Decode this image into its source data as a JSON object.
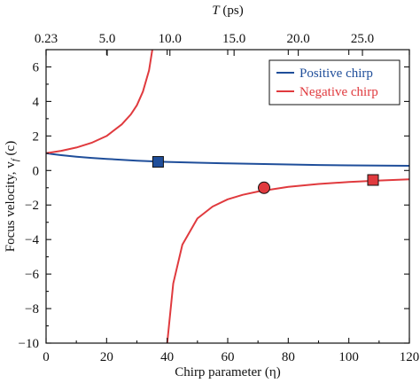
{
  "chart_data": {
    "type": "line",
    "xlabel": "Chirp parameter (η)",
    "ylabel": "Focus velocity, v_f (c)",
    "xlim": [
      0,
      120
    ],
    "ylim": [
      -10,
      7
    ],
    "x_ticks": [
      "0",
      "20",
      "40",
      "60",
      "80",
      "100",
      "120"
    ],
    "y_ticks": [
      "−10",
      "−8",
      "−6",
      "−4",
      "−2",
      "0",
      "2",
      "4",
      "6"
    ],
    "top_axis": {
      "label": "T (ps)",
      "ticks": [
        "0.23",
        "5.0",
        "10.0",
        "15.0",
        "20.0",
        "25.0"
      ],
      "tick_positions_eta": [
        0,
        20.2,
        40.9,
        62.1,
        83.3,
        104.5
      ]
    },
    "legend_position": "top-right",
    "grid": false,
    "series": [
      {
        "name": "Positive chirp",
        "color": "#1f4e9a",
        "x": [
          0,
          2,
          5,
          10,
          15,
          20,
          25,
          30,
          40,
          50,
          60,
          70,
          80,
          90,
          100,
          110,
          120
        ],
        "y": [
          1.0,
          0.95,
          0.89,
          0.8,
          0.73,
          0.67,
          0.62,
          0.57,
          0.5,
          0.45,
          0.41,
          0.38,
          0.35,
          0.32,
          0.3,
          0.28,
          0.27
        ],
        "markers": [
          {
            "x": 37,
            "y": 0.5,
            "shape": "square"
          }
        ]
      },
      {
        "name": "Negative chirp",
        "color": "#e03a3e",
        "x": [
          0,
          2,
          5,
          10,
          15,
          20,
          25,
          28,
          30,
          32,
          34,
          36,
          38,
          40,
          42,
          45,
          50,
          55,
          60,
          65,
          70,
          80,
          90,
          100,
          110,
          120
        ],
        "y": [
          1.0,
          1.05,
          1.14,
          1.33,
          1.6,
          2.0,
          2.67,
          3.25,
          3.78,
          4.57,
          5.8,
          8.0,
          null,
          -10.0,
          -6.55,
          -4.3,
          -2.78,
          -2.09,
          -1.67,
          -1.41,
          -1.22,
          -0.95,
          -0.78,
          -0.67,
          -0.58,
          -0.51
        ],
        "markers": [
          {
            "x": 72,
            "y": -1.0,
            "shape": "circle"
          },
          {
            "x": 108,
            "y": -0.55,
            "shape": "square"
          }
        ]
      }
    ]
  }
}
